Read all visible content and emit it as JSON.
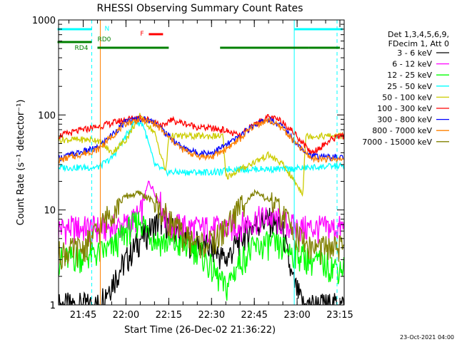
{
  "chart_data": {
    "type": "line",
    "title": "RHESSI Observing Summary Count Rates",
    "xlabel": "Start Time (26-Dec-02 21:36:22)",
    "ylabel": "Count Rate (s⁻¹ detector⁻¹)",
    "y_scale": "log",
    "ylim": [
      1,
      1000
    ],
    "xlim": [
      "21:36:22",
      "23:16:30"
    ],
    "x_ticks": [
      "21:45",
      "22:00",
      "22:15",
      "22:30",
      "22:45",
      "23:00",
      "23:15"
    ],
    "y_ticks": [
      "1",
      "10",
      "100",
      "1000"
    ],
    "legend_header": [
      "Det 1,3,4,5,6,9,",
      "FDecim 1, Att 0"
    ],
    "legend_position": "right",
    "timestamp": "23-Oct-2021 04:00",
    "series": [
      {
        "name": "3 - 6 keV",
        "color": "#000000",
        "x": [
          "21:36",
          "21:50",
          "22:00",
          "22:05",
          "22:10",
          "22:13",
          "22:20",
          "22:30",
          "22:35",
          "22:40",
          "22:45",
          "22:50",
          "22:55",
          "22:58",
          "23:02",
          "23:10",
          "23:14"
        ],
        "values": [
          1,
          1,
          3,
          5,
          7,
          8,
          5,
          4,
          3,
          5,
          7,
          8,
          6,
          2,
          1,
          1,
          1
        ]
      },
      {
        "name": "6 - 12 keV",
        "color": "#ff00ff",
        "x": [
          "21:50",
          "22:00",
          "22:05",
          "22:08",
          "22:12",
          "22:15",
          "22:25",
          "22:35",
          "22:40",
          "22:45",
          "22:50",
          "22:55",
          "23:00"
        ],
        "values": [
          6.5,
          7,
          9,
          20,
          12,
          7,
          6.5,
          6.5,
          7,
          8,
          8.5,
          7.5,
          6.5
        ]
      },
      {
        "name": "12 - 25 keV",
        "color": "#00ff00",
        "x": [
          "21:36",
          "21:50",
          "21:55",
          "22:00",
          "22:05",
          "22:10",
          "22:15",
          "22:25",
          "22:35",
          "22:40",
          "22:45",
          "22:50",
          "22:55",
          "23:00",
          "23:05",
          "23:14"
        ],
        "values": [
          3,
          3.5,
          4,
          6,
          8,
          5,
          4.5,
          4,
          1.5,
          3,
          4,
          4.5,
          4,
          3.5,
          3,
          2.5
        ]
      },
      {
        "name": "25 - 50 keV",
        "color": "#00ffff",
        "x": [
          "21:36",
          "21:50",
          "21:55",
          "22:00",
          "22:03",
          "22:06",
          "22:10",
          "22:14",
          "22:15",
          "22:25",
          "22:34",
          "22:35",
          "22:45",
          "22:55",
          "22:57",
          "23:05",
          "23:14"
        ],
        "values": [
          28,
          28,
          35,
          60,
          85,
          80,
          30,
          25,
          25,
          25,
          25,
          27,
          27,
          27,
          27,
          28,
          29
        ]
      },
      {
        "name": "50 - 100 keV",
        "color": "#cccc00",
        "x": [
          "21:36",
          "21:50",
          "21:55",
          "22:00",
          "22:05",
          "22:10",
          "22:14",
          "22:15",
          "22:25",
          "22:34",
          "22:35",
          "22:45",
          "22:50",
          "22:55",
          "23:02",
          "23:03",
          "23:14"
        ],
        "values": [
          55,
          55,
          40,
          55,
          100,
          65,
          25,
          60,
          60,
          60,
          22,
          32,
          38,
          30,
          15,
          60,
          60
        ]
      },
      {
        "name": "100 - 300 keV",
        "color": "#ff0000",
        "x": [
          "21:36",
          "21:45",
          "21:50",
          "22:00",
          "22:05",
          "22:10",
          "22:14",
          "22:15",
          "22:25",
          "22:34",
          "22:40",
          "22:45",
          "22:50",
          "22:55",
          "23:00",
          "23:05",
          "23:14"
        ],
        "values": [
          60,
          70,
          75,
          90,
          95,
          85,
          75,
          90,
          75,
          70,
          60,
          80,
          95,
          85,
          60,
          40,
          60
        ]
      },
      {
        "name": "300 - 800 keV",
        "color": "#0000ff",
        "x": [
          "21:36",
          "21:50",
          "22:00",
          "22:05",
          "22:10",
          "22:15",
          "22:20",
          "22:25",
          "22:30",
          "22:35",
          "22:40",
          "22:45",
          "22:50",
          "22:55",
          "23:00",
          "23:05",
          "23:14"
        ],
        "values": [
          35,
          45,
          85,
          92,
          85,
          60,
          45,
          40,
          40,
          48,
          60,
          80,
          90,
          75,
          50,
          37,
          36
        ]
      },
      {
        "name": "800 - 7000 keV",
        "color": "#ff8000",
        "x": [
          "21:36",
          "21:50",
          "22:00",
          "22:05",
          "22:10",
          "22:15",
          "22:20",
          "22:25",
          "22:30",
          "22:35",
          "22:40",
          "22:45",
          "22:50",
          "22:55",
          "23:00",
          "23:05",
          "23:14"
        ],
        "values": [
          33,
          43,
          82,
          90,
          82,
          58,
          43,
          37,
          36,
          44,
          56,
          78,
          88,
          72,
          48,
          35,
          34
        ]
      },
      {
        "name": "7000 - 15000 keV",
        "color": "#808000",
        "x": [
          "21:36",
          "21:45",
          "21:50",
          "21:55",
          "22:00",
          "22:05",
          "22:10",
          "22:15",
          "22:20",
          "22:25",
          "22:30",
          "22:35",
          "22:40",
          "22:45",
          "22:50",
          "22:55",
          "23:00",
          "23:05",
          "23:14"
        ],
        "values": [
          3.5,
          4,
          6,
          10,
          14,
          15,
          12,
          8,
          5.5,
          4.5,
          4.5,
          6.5,
          11,
          15,
          13,
          9,
          5.5,
          4,
          4
        ]
      }
    ],
    "status_bars": [
      {
        "label": "N",
        "color": "#00ffff",
        "segments": [
          [
            "21:36",
            "21:48"
          ],
          [
            "22:59",
            "23:16"
          ]
        ]
      },
      {
        "label": "F",
        "color": "#ff0000",
        "segments": [
          [
            "22:08",
            "22:13"
          ]
        ]
      },
      {
        "label": "RD0",
        "color": "#008000",
        "segments": [
          [
            "21:36",
            "21:48"
          ]
        ]
      },
      {
        "label": "RD4",
        "color": "#008000",
        "segments": [
          [
            "21:50",
            "22:15"
          ],
          [
            "22:33",
            "23:04"
          ],
          [
            "23:04",
            "23:15"
          ]
        ]
      }
    ],
    "vertical_markers": [
      {
        "color": "#00ffff",
        "style": "dashed",
        "x": "21:48"
      },
      {
        "color": "#00ffff",
        "style": "solid",
        "x": "22:59"
      },
      {
        "color": "#00ffff",
        "style": "dashed",
        "x": "23:14"
      },
      {
        "color": "#ff8000",
        "style": "solid",
        "x": "21:51"
      }
    ]
  }
}
